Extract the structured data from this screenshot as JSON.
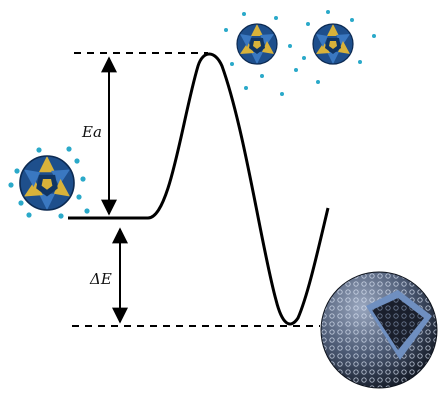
{
  "labels": {
    "activation_energy": "Ea",
    "energy_difference": "ΔE"
  },
  "icons": {
    "reactant_cluster": "polyoxometalate-cluster-with-ions-icon",
    "transition_clusters": "dispersed-clusters-icon",
    "product_sphere": "hollow-vesicle-sphere-icon"
  },
  "colors": {
    "line": "#000000",
    "cluster_blue": "#1e4f8c",
    "cluster_gold": "#d8b23a",
    "ion": "#2aa9c9",
    "sphere_shell": "#6f8fc0",
    "sphere_dark": "#1a1f2c"
  }
}
